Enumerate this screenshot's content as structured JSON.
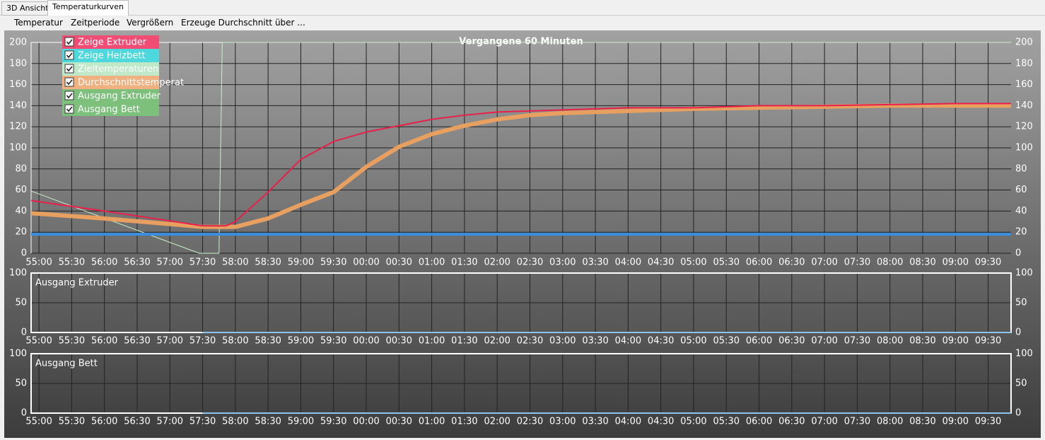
{
  "tabs": [
    "3D Ansicht",
    "Temperaturkurven"
  ],
  "menu": [
    "Temperatur",
    "Zeitperiode",
    "Vergrößern",
    "Erzeuge Durchschnitt über ..."
  ],
  "chart_data": [
    {
      "type": "line",
      "title": "Vergangene 60 Minuten",
      "xlim": [
        -0.12,
        14.85
      ],
      "ylim": [
        0,
        200
      ],
      "yticks": [
        0,
        20,
        40,
        60,
        80,
        100,
        120,
        140,
        160,
        180,
        200
      ],
      "grid": true,
      "xticks": [
        {
          "value": 0,
          "label": "55:00"
        },
        {
          "value": 0.5,
          "label": "55:30"
        },
        {
          "value": 1,
          "label": "56:00"
        },
        {
          "value": 1.5,
          "label": "56:30"
        },
        {
          "value": 2,
          "label": "57:00"
        },
        {
          "value": 2.5,
          "label": "57:30"
        },
        {
          "value": 3,
          "label": "58:00"
        },
        {
          "value": 3.5,
          "label": "58:30"
        },
        {
          "value": 4,
          "label": "59:00"
        },
        {
          "value": 4.5,
          "label": "59:30"
        },
        {
          "value": 5,
          "label": "00:00"
        },
        {
          "value": 5.5,
          "label": "00:30"
        },
        {
          "value": 6,
          "label": "01:00"
        },
        {
          "value": 6.5,
          "label": "01:30"
        },
        {
          "value": 7,
          "label": "02:00"
        },
        {
          "value": 7.5,
          "label": "02:30"
        },
        {
          "value": 8,
          "label": "03:00"
        },
        {
          "value": 8.5,
          "label": "03:30"
        },
        {
          "value": 9,
          "label": "04:00"
        },
        {
          "value": 9.5,
          "label": "04:30"
        },
        {
          "value": 10,
          "label": "05:00"
        },
        {
          "value": 10.5,
          "label": "05:30"
        },
        {
          "value": 11,
          "label": "06:00"
        },
        {
          "value": 11.5,
          "label": "06:30"
        },
        {
          "value": 12,
          "label": "07:00"
        },
        {
          "value": 12.5,
          "label": "07:30"
        },
        {
          "value": 13,
          "label": "08:00"
        },
        {
          "value": 13.5,
          "label": "08:30"
        },
        {
          "value": 14,
          "label": "09:00"
        },
        {
          "value": 14.5,
          "label": "09:30"
        }
      ],
      "series": [
        {
          "name": "Zeige Extruder",
          "color": "#e8204a",
          "legend_color": "#f04c74",
          "width": 2,
          "x": [
            -0.12,
            1,
            2.5,
            2.86,
            3,
            3.5,
            4,
            4.5,
            5,
            5.5,
            6,
            6.5,
            7,
            8,
            9,
            10,
            11,
            12,
            13,
            14,
            14.85
          ],
          "values": [
            50,
            40,
            26,
            26,
            30,
            58,
            89,
            106,
            115,
            121,
            127,
            131,
            134,
            136,
            138,
            138,
            140,
            140,
            141,
            142,
            142
          ]
        },
        {
          "name": "Zeige Heizbett",
          "color": "#3a8ee0",
          "legend_color": "#4cd8dc",
          "width": 4,
          "x": [
            -0.12,
            14.85
          ],
          "values": [
            18,
            18
          ]
        },
        {
          "name": "Zieltemperaturen",
          "color": "#c8f0c8",
          "legend_color": "#bfe8c8",
          "width": 1,
          "x": [
            -0.12,
            2.45,
            2.75,
            2.8,
            14.85
          ],
          "values": [
            59,
            0,
            0,
            200,
            200
          ]
        },
        {
          "name": "Durchschnittstemperat",
          "color": "#e8a060",
          "legend_color": "#f0b080",
          "width": 6,
          "x": [
            -0.12,
            1,
            2.5,
            3,
            3.5,
            4,
            4.5,
            5,
            5.5,
            6,
            6.5,
            7,
            7.5,
            8,
            9,
            10,
            11,
            12,
            13,
            14,
            14.85
          ],
          "values": [
            38,
            33,
            25,
            25,
            33,
            46,
            58,
            82,
            101,
            113,
            121,
            127,
            131,
            133,
            135,
            137,
            138,
            139,
            140,
            140,
            140
          ]
        }
      ]
    },
    {
      "type": "line",
      "title": "Ausgang Extruder",
      "xlim": [
        -0.12,
        14.85
      ],
      "ylim": [
        0,
        100
      ],
      "yticks": [
        0,
        50,
        100
      ],
      "grid": true,
      "xticks": [
        {
          "value": 0,
          "label": "55:00"
        },
        {
          "value": 0.5,
          "label": "55:30"
        },
        {
          "value": 1,
          "label": "56:00"
        },
        {
          "value": 1.5,
          "label": "56:30"
        },
        {
          "value": 2,
          "label": "57:00"
        },
        {
          "value": 2.5,
          "label": "57:30"
        },
        {
          "value": 3,
          "label": "58:00"
        },
        {
          "value": 3.5,
          "label": "58:30"
        },
        {
          "value": 4,
          "label": "59:00"
        },
        {
          "value": 4.5,
          "label": "59:30"
        },
        {
          "value": 5,
          "label": "00:00"
        },
        {
          "value": 5.5,
          "label": "00:30"
        },
        {
          "value": 6,
          "label": "01:00"
        },
        {
          "value": 6.5,
          "label": "01:30"
        },
        {
          "value": 7,
          "label": "02:00"
        },
        {
          "value": 7.5,
          "label": "02:30"
        },
        {
          "value": 8,
          "label": "03:00"
        },
        {
          "value": 8.5,
          "label": "03:30"
        },
        {
          "value": 9,
          "label": "04:00"
        },
        {
          "value": 9.5,
          "label": "04:30"
        },
        {
          "value": 10,
          "label": "05:00"
        },
        {
          "value": 10.5,
          "label": "05:30"
        },
        {
          "value": 11,
          "label": "06:00"
        },
        {
          "value": 11.5,
          "label": "06:30"
        },
        {
          "value": 12,
          "label": "07:00"
        },
        {
          "value": 12.5,
          "label": "07:30"
        },
        {
          "value": 13,
          "label": "08:00"
        },
        {
          "value": 13.5,
          "label": "08:30"
        },
        {
          "value": 14,
          "label": "09:00"
        },
        {
          "value": 14.5,
          "label": "09:30"
        }
      ],
      "series": [
        {
          "name": "Ausgang Extruder",
          "color": "#6ab0e8",
          "legend_color": "#7cc07c",
          "width": 1.5,
          "x": [
            2.5,
            14.85
          ],
          "values": [
            0,
            0
          ]
        }
      ]
    },
    {
      "type": "line",
      "title": "Ausgang Bett",
      "xlim": [
        -0.12,
        14.85
      ],
      "ylim": [
        0,
        100
      ],
      "yticks": [
        0,
        50,
        100
      ],
      "grid": true,
      "xticks": [
        {
          "value": 0,
          "label": "55:00"
        },
        {
          "value": 0.5,
          "label": "55:30"
        },
        {
          "value": 1,
          "label": "56:00"
        },
        {
          "value": 1.5,
          "label": "56:30"
        },
        {
          "value": 2,
          "label": "57:00"
        },
        {
          "value": 2.5,
          "label": "57:30"
        },
        {
          "value": 3,
          "label": "58:00"
        },
        {
          "value": 3.5,
          "label": "58:30"
        },
        {
          "value": 4,
          "label": "59:00"
        },
        {
          "value": 4.5,
          "label": "59:30"
        },
        {
          "value": 5,
          "label": "00:00"
        },
        {
          "value": 5.5,
          "label": "00:30"
        },
        {
          "value": 6,
          "label": "01:00"
        },
        {
          "value": 6.5,
          "label": "01:30"
        },
        {
          "value": 7,
          "label": "02:00"
        },
        {
          "value": 7.5,
          "label": "02:30"
        },
        {
          "value": 8,
          "label": "03:00"
        },
        {
          "value": 8.5,
          "label": "03:30"
        },
        {
          "value": 9,
          "label": "04:00"
        },
        {
          "value": 9.5,
          "label": "04:30"
        },
        {
          "value": 10,
          "label": "05:00"
        },
        {
          "value": 10.5,
          "label": "05:30"
        },
        {
          "value": 11,
          "label": "06:00"
        },
        {
          "value": 11.5,
          "label": "06:30"
        },
        {
          "value": 12,
          "label": "07:00"
        },
        {
          "value": 12.5,
          "label": "07:30"
        },
        {
          "value": 13,
          "label": "08:00"
        },
        {
          "value": 13.5,
          "label": "08:30"
        },
        {
          "value": 14,
          "label": "09:00"
        },
        {
          "value": 14.5,
          "label": "09:30"
        }
      ],
      "series": [
        {
          "name": "Ausgang Bett",
          "color": "#6ab0e8",
          "legend_color": "#7cc07c",
          "width": 1.5,
          "x": [
            2.5,
            14.85
          ],
          "values": [
            0,
            0
          ]
        }
      ]
    }
  ]
}
